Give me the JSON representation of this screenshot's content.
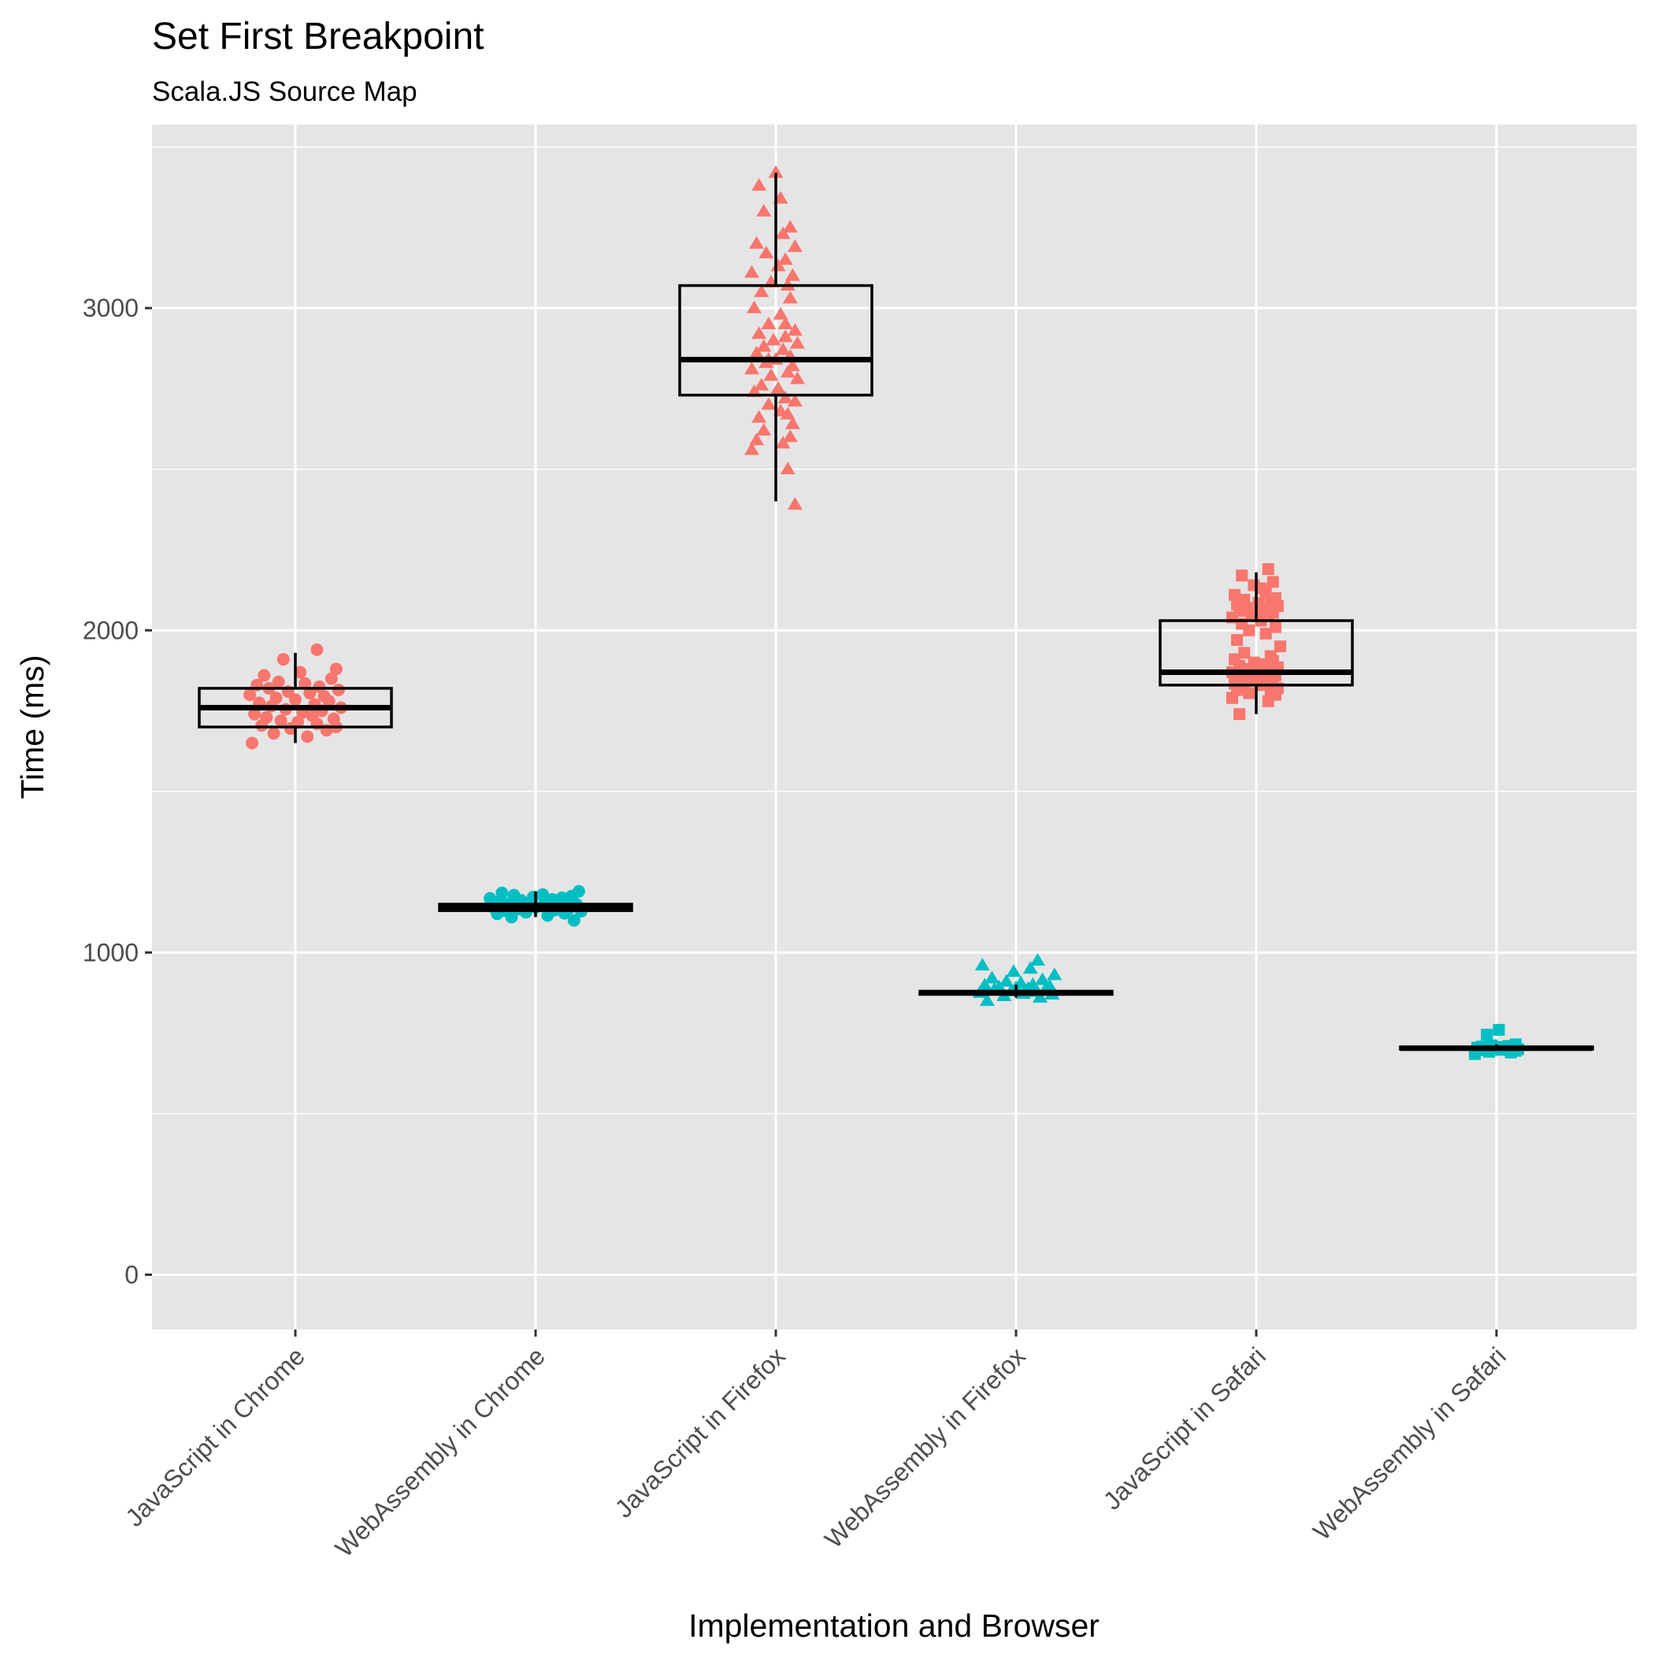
{
  "chart_data": {
    "type": "box",
    "title": "Set First Breakpoint",
    "subtitle": "Scala.JS Source Map",
    "xlabel": "Implementation and Browser",
    "ylabel": "Time (ms)",
    "ylim": [
      -170,
      3570
    ],
    "yticks": [
      0,
      1000,
      2000,
      3000
    ],
    "yticklabels": [
      "0",
      "1000",
      "2000",
      "3000"
    ],
    "categories": [
      "JavaScript in Chrome",
      "WebAssembly in Chrome",
      "JavaScript in Firefox",
      "WebAssembly in Firefox",
      "JavaScript in Safari",
      "WebAssembly in Safari"
    ],
    "grid": true,
    "legend": "none",
    "colors": {
      "JavaScript": "#F8766D",
      "WebAssembly": "#00BFC4",
      "panel": "#E5E5E5",
      "grid": "#FFFFFF",
      "box": "#000000"
    },
    "boxes": [
      {
        "category": "JavaScript in Chrome",
        "whisker_low": 1650,
        "q1": 1700,
        "median": 1760,
        "q3": 1820,
        "whisker_high": 1930
      },
      {
        "category": "WebAssembly in Chrome",
        "whisker_low": 1110,
        "q1": 1130,
        "median": 1140,
        "q3": 1150,
        "whisker_high": 1190
      },
      {
        "category": "JavaScript in Firefox",
        "whisker_low": 2400,
        "q1": 2730,
        "median": 2840,
        "q3": 3070,
        "whisker_high": 3420
      },
      {
        "category": "WebAssembly in Firefox",
        "whisker_low": 860,
        "q1": 870,
        "median": 875,
        "q3": 880,
        "whisker_high": 900
      },
      {
        "category": "JavaScript in Safari",
        "whisker_low": 1740,
        "q1": 1830,
        "median": 1870,
        "q3": 2030,
        "whisker_high": 2180
      },
      {
        "category": "WebAssembly in Safari",
        "whisker_low": 700,
        "q1": 700,
        "median": 703,
        "q3": 707,
        "whisker_high": 715
      }
    ],
    "series": [
      {
        "category": "JavaScript in Chrome",
        "shape": "circle",
        "color": "#F8766D",
        "jitter": [
          -0.18,
          0.05,
          -0.09,
          0.13,
          -0.02,
          0.17,
          -0.14,
          0.09,
          0.01,
          -0.06,
          0.16,
          -0.12,
          0.07,
          -0.17,
          0.03,
          0.11,
          -0.04,
          0.19,
          -0.1,
          0.08,
          -0.15,
          0.14,
          0.0,
          -0.08,
          0.12,
          -0.19,
          0.06,
          -0.03,
          0.18,
          -0.11,
          0.1,
          -0.16,
          0.04,
          -0.07,
          0.15,
          -0.13,
          0.02,
          0.17,
          -0.05,
          0.09
        ],
        "values": [
          1650,
          1670,
          1680,
          1690,
          1695,
          1700,
          1705,
          1710,
          1715,
          1720,
          1725,
          1730,
          1735,
          1740,
          1745,
          1750,
          1755,
          1760,
          1765,
          1770,
          1775,
          1780,
          1785,
          1790,
          1795,
          1800,
          1805,
          1810,
          1815,
          1820,
          1825,
          1830,
          1835,
          1840,
          1850,
          1860,
          1870,
          1880,
          1910,
          1940
        ]
      },
      {
        "category": "WebAssembly in Chrome",
        "shape": "circle",
        "color": "#00BFC4",
        "jitter": [
          0.16,
          -0.1,
          0.05,
          -0.16,
          0.12,
          -0.04,
          0.19,
          -0.13,
          0.08,
          -0.07,
          0.14,
          0.0,
          -0.18,
          0.1,
          -0.02,
          0.17,
          -0.11,
          0.04,
          -0.15,
          0.13,
          -0.06,
          0.07,
          -0.19,
          0.11,
          -0.01,
          0.15,
          -0.09,
          0.03,
          -0.14,
          0.18
        ],
        "values": [
          1100,
          1110,
          1115,
          1120,
          1122,
          1125,
          1128,
          1130,
          1132,
          1135,
          1137,
          1140,
          1142,
          1145,
          1147,
          1150,
          1152,
          1155,
          1158,
          1160,
          1162,
          1165,
          1168,
          1170,
          1172,
          1175,
          1178,
          1180,
          1185,
          1190
        ]
      },
      {
        "category": "JavaScript in Firefox",
        "shape": "triangle",
        "color": "#F8766D",
        "jitter": [
          0.08,
          0.05,
          -0.1,
          0.03,
          -0.08,
          0.06,
          -0.05,
          0.07,
          -0.07,
          0.02,
          -0.03,
          0.08,
          0.04,
          -0.09,
          0.01,
          -0.06,
          0.09,
          -0.02,
          0.05,
          -0.1,
          0.07,
          -0.04,
          0.0,
          0.06,
          -0.08,
          0.03,
          -0.05,
          0.09,
          -0.01,
          0.04,
          -0.07,
          0.08,
          -0.03,
          0.02,
          -0.09,
          0.06,
          -0.06,
          0.05,
          -0.02,
          0.07,
          -0.1,
          0.01,
          0.04,
          -0.04,
          0.08,
          -0.08,
          0.03,
          0.06,
          -0.05,
          0.02,
          -0.07,
          0.0,
          0.05,
          -0.03,
          0.04
        ],
        "values": [
          2390,
          2500,
          2560,
          2580,
          2590,
          2600,
          2620,
          2640,
          2660,
          2680,
          2700,
          2710,
          2720,
          2740,
          2750,
          2760,
          2780,
          2790,
          2800,
          2810,
          2820,
          2830,
          2840,
          2850,
          2860,
          2870,
          2880,
          2890,
          2900,
          2910,
          2920,
          2930,
          2950,
          2980,
          3000,
          3030,
          3050,
          3070,
          3080,
          3100,
          3110,
          3130,
          3150,
          3170,
          3190,
          3200,
          3230,
          3250,
          3300,
          3340,
          3380,
          3420,
          2670,
          2840,
          2950
        ]
      },
      {
        "category": "WebAssembly in Firefox",
        "shape": "triangle",
        "color": "#00BFC4",
        "jitter": [
          -0.12,
          0.1,
          -0.05,
          0.15,
          0.03,
          -0.15,
          0.08,
          -0.02,
          0.12,
          -0.09,
          0.05,
          0.0,
          -0.07,
          0.14,
          -0.13,
          0.07,
          0.02,
          -0.04,
          0.11,
          -0.1,
          0.16,
          -0.01,
          0.06,
          -0.14,
          0.09
        ],
        "values": [
          850,
          860,
          865,
          870,
          872,
          875,
          878,
          880,
          882,
          885,
          888,
          890,
          892,
          895,
          898,
          900,
          905,
          910,
          915,
          920,
          930,
          940,
          950,
          960,
          975
        ]
      },
      {
        "category": "JavaScript in Safari",
        "shape": "square",
        "color": "#F8766D",
        "jitter": [
          -0.07,
          0.05,
          -0.1,
          0.08,
          -0.03,
          0.06,
          -0.08,
          0.09,
          -0.05,
          0.02,
          -0.09,
          0.07,
          -0.02,
          0.04,
          -0.06,
          0.08,
          0.0,
          -0.1,
          0.05,
          -0.04,
          0.09,
          -0.07,
          0.03,
          -0.01,
          0.07,
          -0.09,
          0.06,
          -0.05,
          0.1,
          -0.08,
          0.04,
          -0.03,
          0.08,
          -0.06,
          0.02,
          -0.1,
          0.05,
          -0.02,
          0.07,
          -0.07,
          0.03,
          -0.04,
          0.09,
          -0.08,
          0.01,
          0.06,
          -0.05,
          0.08,
          -0.09,
          0.04,
          0.02,
          -0.01,
          0.07,
          -0.06,
          0.05
        ],
        "values": [
          1740,
          1780,
          1790,
          1800,
          1805,
          1810,
          1815,
          1820,
          1825,
          1830,
          1835,
          1840,
          1845,
          1850,
          1855,
          1860,
          1865,
          1870,
          1875,
          1880,
          1885,
          1890,
          1895,
          1900,
          1905,
          1910,
          1920,
          1930,
          1950,
          1970,
          1990,
          2000,
          2010,
          2020,
          2030,
          2040,
          2045,
          2050,
          2055,
          2060,
          2065,
          2070,
          2075,
          2080,
          2085,
          2090,
          2095,
          2100,
          2110,
          2120,
          2130,
          2140,
          2150,
          2170,
          2190
        ]
      },
      {
        "category": "WebAssembly in Safari",
        "shape": "square",
        "color": "#00BFC4",
        "jitter": [
          -0.09,
          0.06,
          -0.03,
          0.08,
          -0.07,
          0.02,
          0.09,
          -0.05,
          0.04,
          -0.01,
          0.07,
          -0.08,
          0.03,
          0.0,
          -0.06,
          0.05,
          -0.02,
          0.08,
          -0.04,
          0.01
        ],
        "values": [
          685,
          690,
          692,
          695,
          697,
          698,
          700,
          701,
          702,
          703,
          704,
          705,
          706,
          707,
          708,
          710,
          712,
          715,
          745,
          760
        ]
      }
    ]
  }
}
